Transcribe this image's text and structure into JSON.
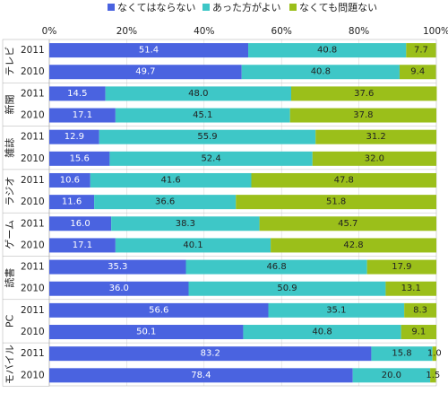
{
  "chart_data": {
    "type": "bar",
    "orientation": "horizontal",
    "stacked": true,
    "percent": true,
    "title": "",
    "xlabel": "",
    "ylabel": "",
    "xlim": [
      0,
      100
    ],
    "x_ticks": [
      "0%",
      "20%",
      "40%",
      "60%",
      "80%",
      "100%"
    ],
    "grid": true,
    "legend_position": "top",
    "series": [
      {
        "name": "なくてはならない",
        "color": "#4a63e0"
      },
      {
        "name": "あった方がよい",
        "color": "#3ec7c7"
      },
      {
        "name": "なくても問題ない",
        "color": "#9bbf1a"
      }
    ],
    "groups": [
      {
        "name": "テレビ",
        "rows": [
          {
            "year": "2011",
            "values": [
              51.4,
              40.8,
              7.7
            ]
          },
          {
            "year": "2010",
            "values": [
              49.7,
              40.8,
              9.4
            ]
          }
        ]
      },
      {
        "name": "新聞",
        "rows": [
          {
            "year": "2011",
            "values": [
              14.5,
              48.0,
              37.6
            ]
          },
          {
            "year": "2010",
            "values": [
              17.1,
              45.1,
              37.8
            ]
          }
        ]
      },
      {
        "name": "雑誌",
        "rows": [
          {
            "year": "2011",
            "values": [
              12.9,
              55.9,
              31.2
            ]
          },
          {
            "year": "2010",
            "values": [
              15.6,
              52.4,
              32.0
            ]
          }
        ]
      },
      {
        "name": "ラジオ",
        "rows": [
          {
            "year": "2011",
            "values": [
              10.6,
              41.6,
              47.8
            ]
          },
          {
            "year": "2010",
            "values": [
              11.6,
              36.6,
              51.8
            ]
          }
        ]
      },
      {
        "name": "ゲーム",
        "rows": [
          {
            "year": "2011",
            "values": [
              16.0,
              38.3,
              45.7
            ]
          },
          {
            "year": "2010",
            "values": [
              17.1,
              40.1,
              42.8
            ]
          }
        ]
      },
      {
        "name": "読書",
        "rows": [
          {
            "year": "2011",
            "values": [
              35.3,
              46.8,
              17.9
            ]
          },
          {
            "year": "2010",
            "values": [
              36.0,
              50.9,
              13.1
            ]
          }
        ]
      },
      {
        "name": "PC",
        "rows": [
          {
            "year": "2011",
            "values": [
              56.6,
              35.1,
              8.3
            ]
          },
          {
            "year": "2010",
            "values": [
              50.1,
              40.8,
              9.1
            ]
          }
        ]
      },
      {
        "name": "モバイル",
        "rows": [
          {
            "year": "2011",
            "values": [
              83.2,
              15.8,
              1.0
            ]
          },
          {
            "year": "2010",
            "values": [
              78.4,
              20.0,
              1.5
            ]
          }
        ]
      }
    ]
  }
}
